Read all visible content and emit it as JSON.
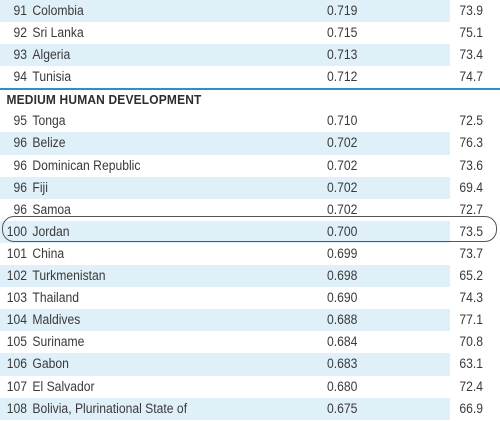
{
  "section_header": "MEDIUM HUMAN DEVELOPMENT",
  "rows_top": [
    {
      "rank": "91",
      "country": "Colombia",
      "hdi": "0.719",
      "life": "73.9"
    },
    {
      "rank": "92",
      "country": "Sri Lanka",
      "hdi": "0.715",
      "life": "75.1"
    },
    {
      "rank": "93",
      "country": "Algeria",
      "hdi": "0.713",
      "life": "73.4"
    },
    {
      "rank": "94",
      "country": "Tunisia",
      "hdi": "0.712",
      "life": "74.7"
    }
  ],
  "rows_medium": [
    {
      "rank": "95",
      "country": "Tonga",
      "hdi": "0.710",
      "life": "72.5"
    },
    {
      "rank": "96",
      "country": "Belize",
      "hdi": "0.702",
      "life": "76.3"
    },
    {
      "rank": "96",
      "country": "Dominican Republic",
      "hdi": "0.702",
      "life": "73.6"
    },
    {
      "rank": "96",
      "country": "Fiji",
      "hdi": "0.702",
      "life": "69.4"
    },
    {
      "rank": "96",
      "country": "Samoa",
      "hdi": "0.702",
      "life": "72.7"
    },
    {
      "rank": "100",
      "country": "Jordan",
      "hdi": "0.700",
      "life": "73.5"
    },
    {
      "rank": "101",
      "country": "China",
      "hdi": "0.699",
      "life": "73.7"
    },
    {
      "rank": "102",
      "country": "Turkmenistan",
      "hdi": "0.698",
      "life": "65.2"
    },
    {
      "rank": "103",
      "country": "Thailand",
      "hdi": "0.690",
      "life": "74.3"
    },
    {
      "rank": "104",
      "country": "Maldives",
      "hdi": "0.688",
      "life": "77.1"
    },
    {
      "rank": "105",
      "country": "Suriname",
      "hdi": "0.684",
      "life": "70.8"
    },
    {
      "rank": "106",
      "country": "Gabon",
      "hdi": "0.683",
      "life": "63.1"
    },
    {
      "rank": "107",
      "country": "El Salvador",
      "hdi": "0.680",
      "life": "72.4"
    },
    {
      "rank": "108",
      "country": "Bolivia, Plurinational State of",
      "hdi": "0.675",
      "life": "66.9"
    }
  ],
  "highlighted_country": "Jordan",
  "colors": {
    "row_shade": "#dff0f8",
    "divider": "#2b90c8",
    "text": "#3a3a3a"
  }
}
